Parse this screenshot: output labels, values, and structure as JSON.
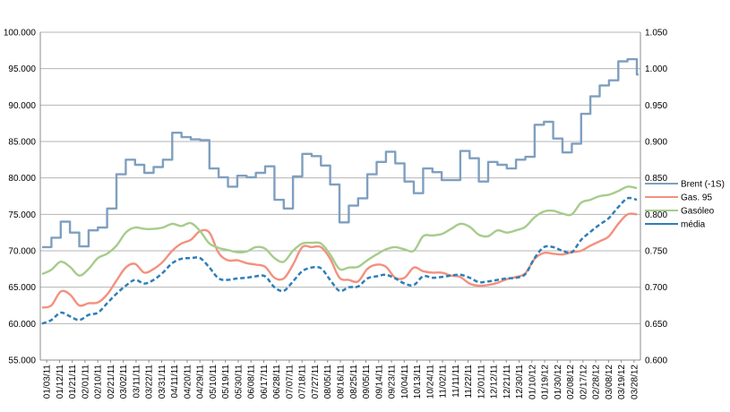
{
  "chart_data": {
    "type": "line",
    "x_ticks": [
      "01/03/11",
      "01/12/11",
      "01/21/11",
      "02/01/11",
      "02/10/11",
      "02/21/11",
      "03/02/11",
      "03/11/11",
      "03/22/11",
      "03/31/11",
      "04/11/11",
      "04/20/11",
      "04/29/11",
      "05/10/11",
      "05/19/11",
      "05/30/11",
      "06/08/11",
      "06/17/11",
      "06/28/11",
      "07/07/11",
      "07/18/11",
      "07/27/11",
      "08/05/11",
      "08/16/11",
      "08/25/11",
      "09/05/11",
      "09/14/11",
      "09/23/11",
      "10/04/11",
      "10/13/11",
      "10/24/11",
      "11/02/11",
      "11/11/11",
      "11/22/11",
      "12/01/11",
      "12/12/11",
      "12/21/11",
      "12/30/11",
      "01/10/12",
      "01/19/12",
      "01/30/12",
      "02/08/12",
      "02/17/12",
      "02/28/12",
      "03/08/12",
      "03/19/12",
      "03/28/12"
    ],
    "y_left": {
      "min": 55,
      "max": 100,
      "step": 5,
      "tick_labels": [
        "55.000",
        "60.000",
        "65.000",
        "70.000",
        "75.000",
        "80.000",
        "85.000",
        "90.000",
        "95.000",
        "100.000"
      ]
    },
    "y_right": {
      "min": 0.6,
      "max": 1.05,
      "step": 0.05,
      "tick_labels": [
        "0.600",
        "0.650",
        "0.700",
        "0.750",
        "0.800",
        "0.850",
        "0.900",
        "0.950",
        "1.000",
        "1.050"
      ]
    },
    "grid": true,
    "legend_position": "right",
    "series": [
      {
        "name": "Brent (-1S)",
        "axis": "left",
        "color": "#7f9fbf",
        "style": "step",
        "values": [
          70.5,
          71.8,
          74,
          72.5,
          70.6,
          72.8,
          73.2,
          75.8,
          80.5,
          82.5,
          81.8,
          80.7,
          81.5,
          82.5,
          86.2,
          85.6,
          85.3,
          85.2,
          81.3,
          80.1,
          78.8,
          80.3,
          80.1,
          80.7,
          81.6,
          77,
          75.8,
          80.2,
          83.3,
          83,
          81.7,
          79.1,
          73.9,
          76.2,
          77.2,
          80.5,
          82.2,
          83.6,
          82,
          79.5,
          77.9,
          81.3,
          80.8,
          79.7,
          79.7,
          83.7,
          82.7,
          79.5,
          82.2,
          81.8,
          81.3,
          82.5,
          82.9,
          87.3,
          87.7,
          85.4,
          83.5,
          84.7,
          88.8,
          91.2,
          92.7,
          93.4,
          96,
          96.3,
          94.2
        ]
      },
      {
        "name": "Gas. 95",
        "axis": "right",
        "color": "#f2917f",
        "style": "smooth",
        "values": [
          0.672,
          0.675,
          0.694,
          0.69,
          0.675,
          0.678,
          0.679,
          0.69,
          0.709,
          0.727,
          0.732,
          0.72,
          0.725,
          0.735,
          0.75,
          0.76,
          0.765,
          0.777,
          0.775,
          0.747,
          0.737,
          0.737,
          0.733,
          0.731,
          0.728,
          0.713,
          0.712,
          0.731,
          0.755,
          0.755,
          0.755,
          0.739,
          0.713,
          0.71,
          0.708,
          0.725,
          0.731,
          0.728,
          0.713,
          0.713,
          0.727,
          0.722,
          0.72,
          0.72,
          0.716,
          0.714,
          0.705,
          0.702,
          0.703,
          0.706,
          0.711,
          0.714,
          0.719,
          0.739,
          0.747,
          0.746,
          0.745,
          0.748,
          0.75,
          0.757,
          0.763,
          0.77,
          0.787,
          0.8,
          0.8
        ]
      },
      {
        "name": "Gasóleo",
        "axis": "right",
        "color": "#a6cc8c",
        "style": "smooth",
        "values": [
          0.718,
          0.724,
          0.735,
          0.728,
          0.716,
          0.725,
          0.74,
          0.746,
          0.757,
          0.775,
          0.782,
          0.78,
          0.78,
          0.782,
          0.787,
          0.784,
          0.788,
          0.777,
          0.76,
          0.754,
          0.751,
          0.748,
          0.749,
          0.755,
          0.753,
          0.74,
          0.735,
          0.75,
          0.76,
          0.761,
          0.76,
          0.745,
          0.725,
          0.727,
          0.728,
          0.737,
          0.745,
          0.752,
          0.755,
          0.752,
          0.75,
          0.77,
          0.771,
          0.773,
          0.78,
          0.787,
          0.783,
          0.772,
          0.77,
          0.778,
          0.775,
          0.778,
          0.783,
          0.796,
          0.804,
          0.805,
          0.801,
          0.8,
          0.816,
          0.82,
          0.825,
          0.827,
          0.832,
          0.838,
          0.836
        ]
      },
      {
        "name": "média",
        "axis": "right",
        "color": "#2d7fb8",
        "style": "dashed",
        "values": [
          0.65,
          0.655,
          0.665,
          0.66,
          0.655,
          0.662,
          0.665,
          0.678,
          0.691,
          0.702,
          0.71,
          0.705,
          0.71,
          0.72,
          0.733,
          0.739,
          0.74,
          0.74,
          0.727,
          0.712,
          0.71,
          0.712,
          0.713,
          0.715,
          0.715,
          0.7,
          0.695,
          0.708,
          0.722,
          0.727,
          0.726,
          0.71,
          0.695,
          0.7,
          0.701,
          0.712,
          0.715,
          0.717,
          0.712,
          0.705,
          0.703,
          0.715,
          0.713,
          0.714,
          0.716,
          0.717,
          0.713,
          0.707,
          0.708,
          0.71,
          0.712,
          0.713,
          0.718,
          0.74,
          0.755,
          0.755,
          0.75,
          0.748,
          0.765,
          0.776,
          0.786,
          0.795,
          0.81,
          0.822,
          0.82
        ]
      }
    ]
  }
}
